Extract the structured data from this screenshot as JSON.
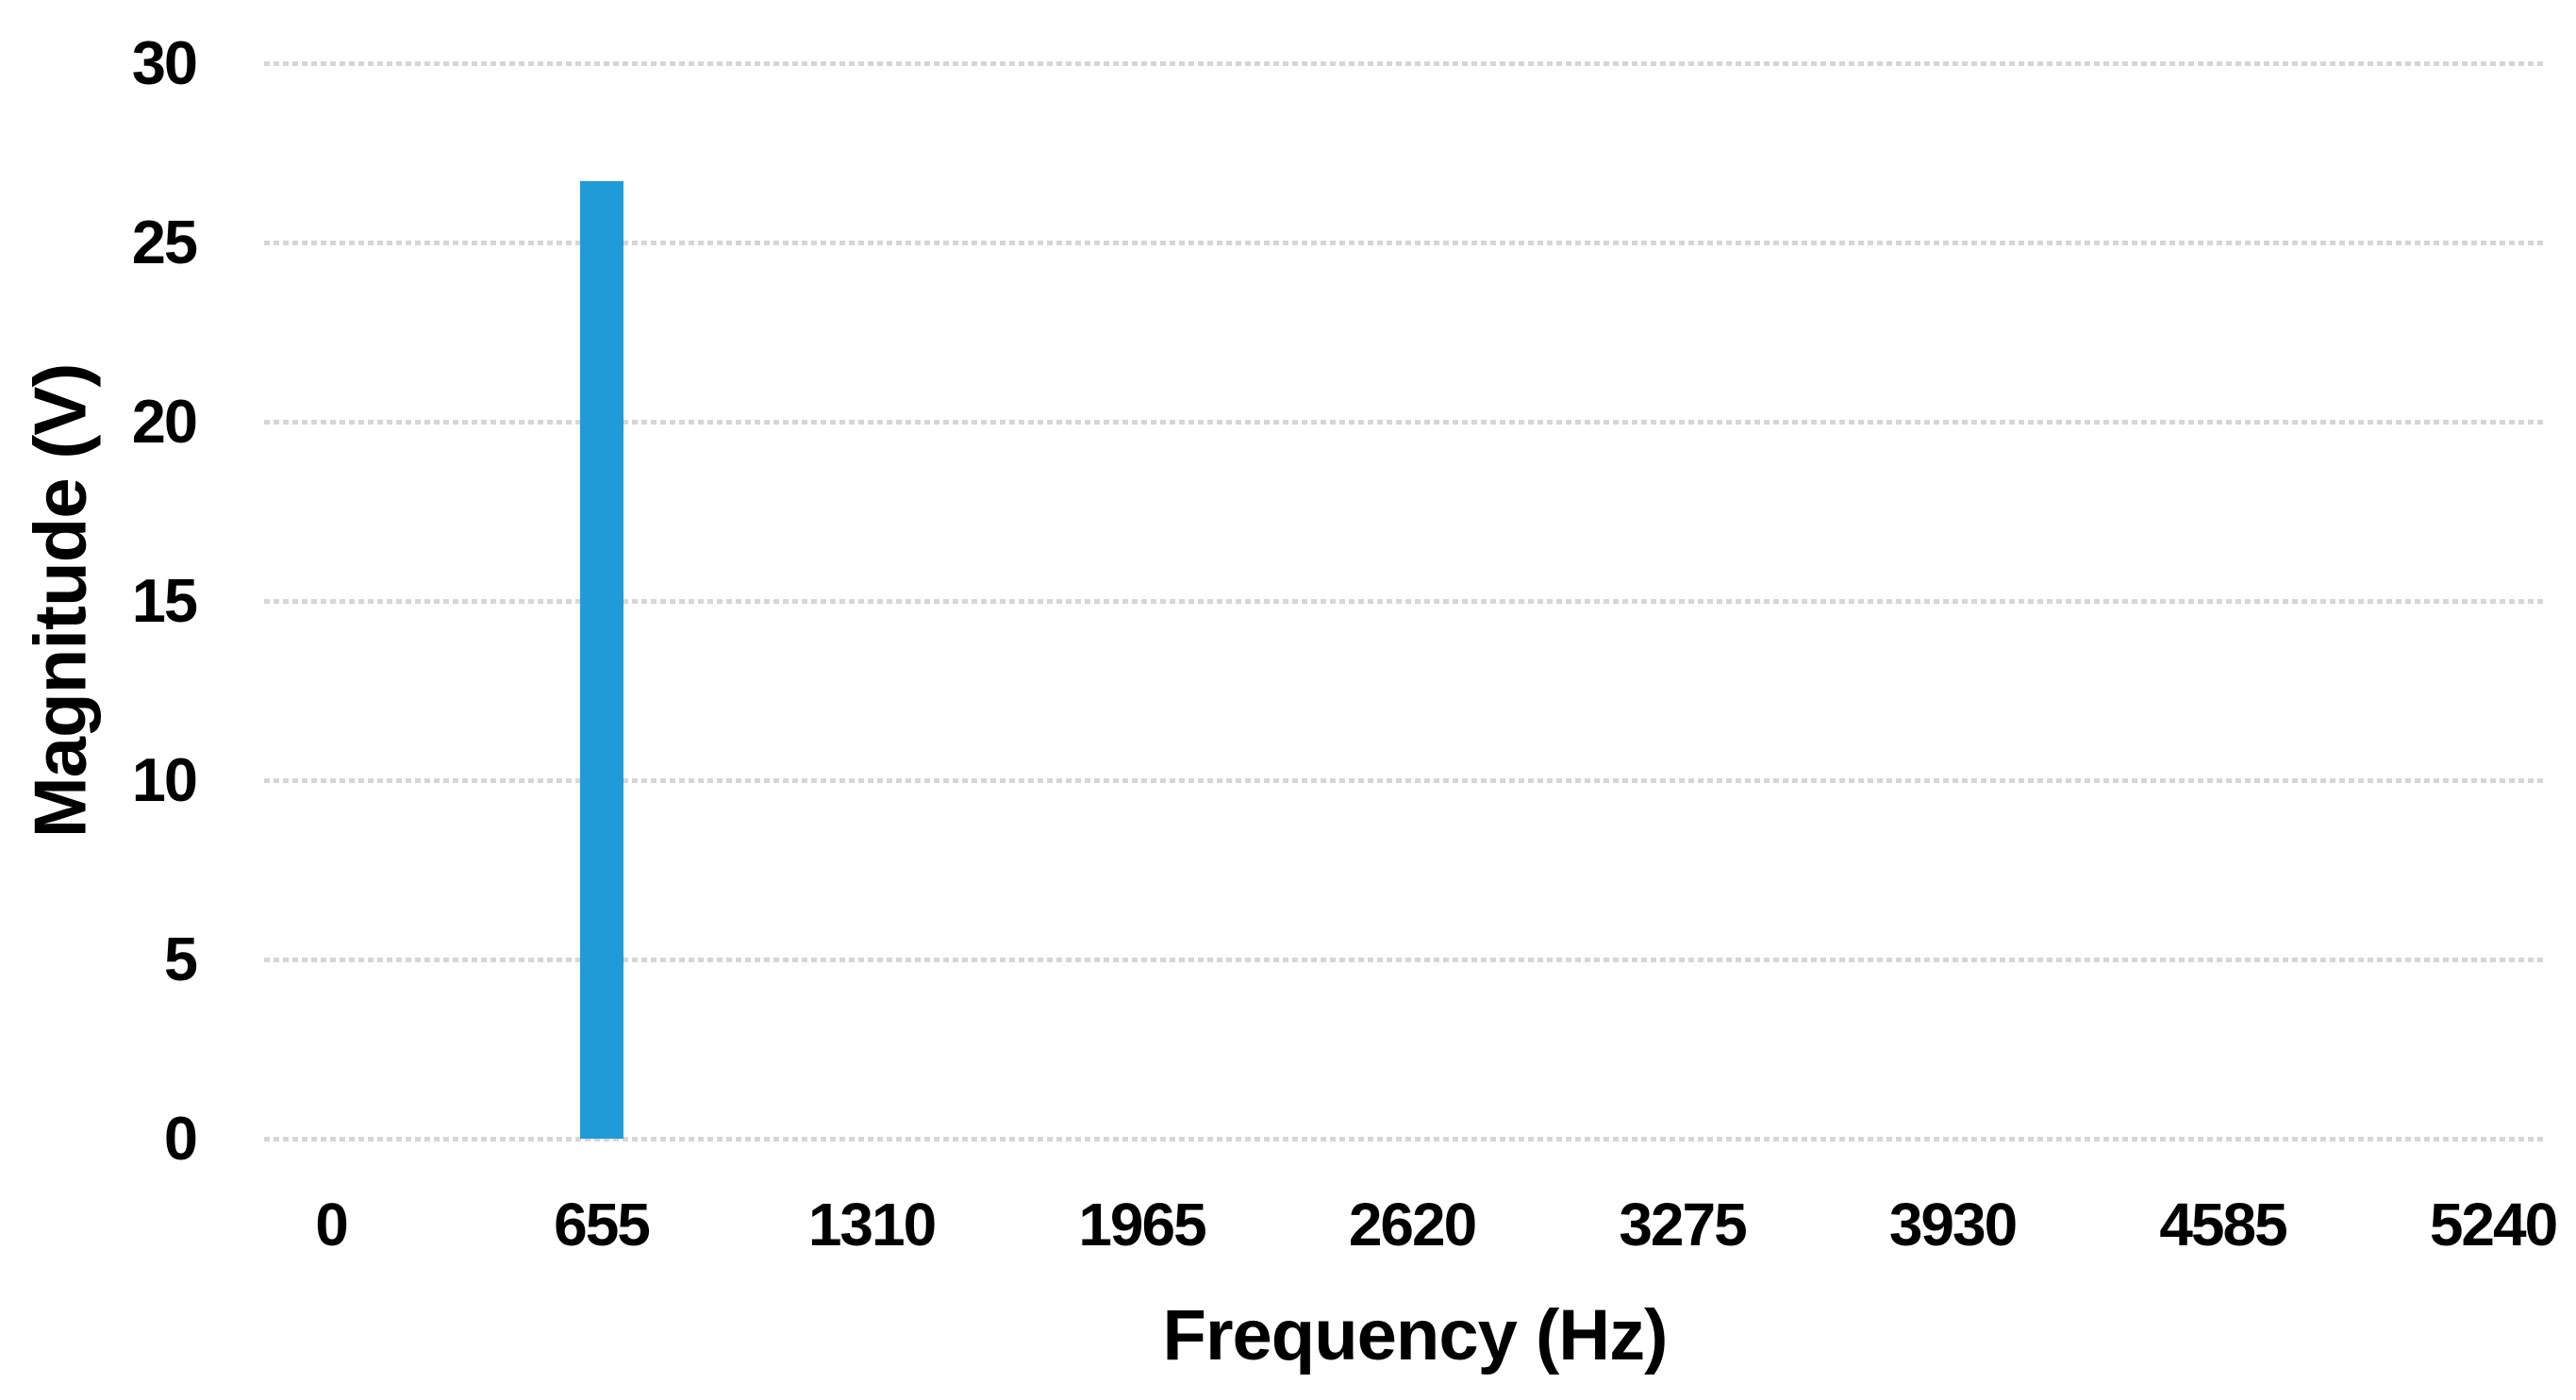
{
  "chart_data": {
    "type": "bar",
    "title": "",
    "xlabel": "Frequency (Hz)",
    "ylabel": "Magnitude (V)",
    "categories": [
      "0",
      "655",
      "1310",
      "1965",
      "2620",
      "3275",
      "3930",
      "4585",
      "5240"
    ],
    "values": [
      0,
      26.7,
      0,
      0,
      0,
      0,
      0,
      0,
      0
    ],
    "series_unit": "V",
    "ylim": [
      0,
      30
    ],
    "yticks": [
      0,
      5,
      10,
      15,
      20,
      25,
      30
    ],
    "grid": "horizontal-dotted",
    "legend_position": "none",
    "colors": {
      "bar": "#1F9CD8",
      "gridline": "#D6D6D6",
      "text": "#000000",
      "background": "#FFFFFF"
    }
  }
}
